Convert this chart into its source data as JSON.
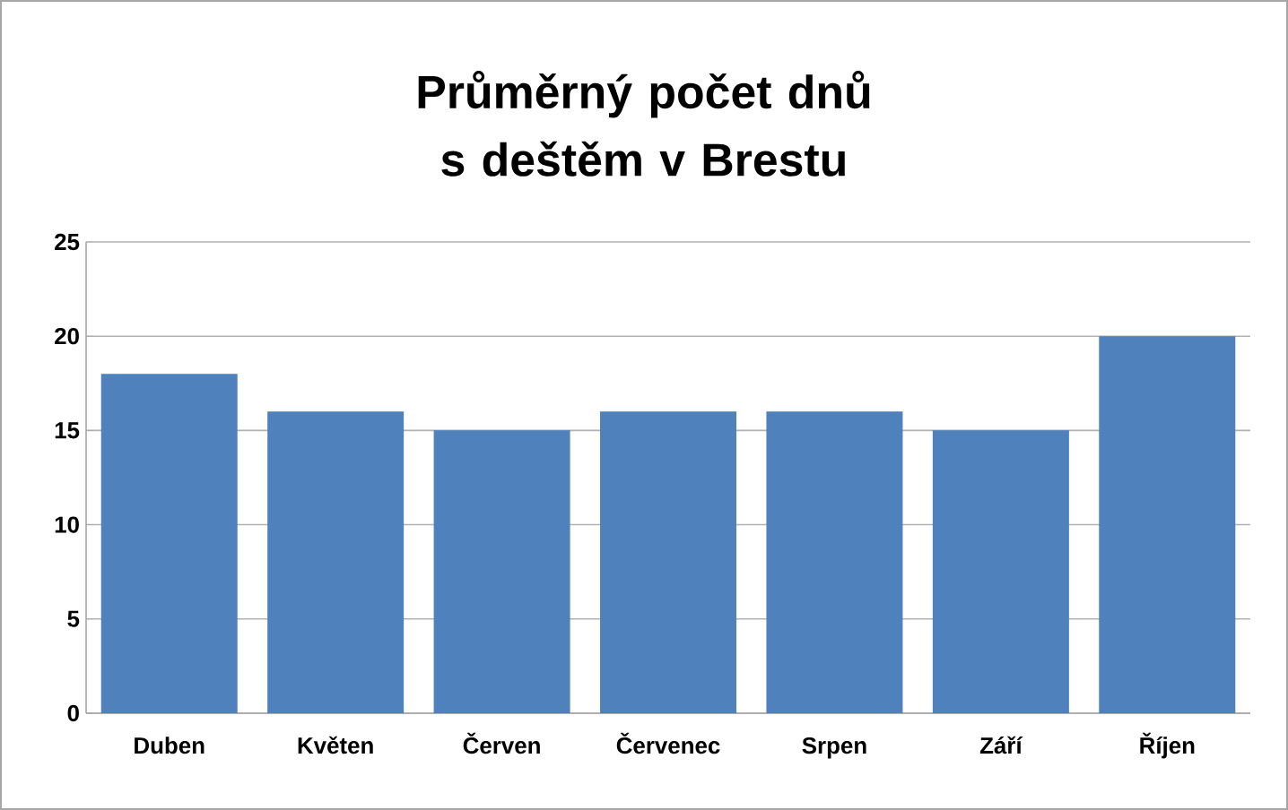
{
  "chart_data": {
    "type": "bar",
    "title": "Průměrný počet dnů s deštěm v Brestu",
    "categories": [
      "Duben",
      "Květen",
      "Červen",
      "Červenec",
      "Srpen",
      "Září",
      "Říjen"
    ],
    "values": [
      18,
      16,
      15,
      16,
      16,
      15,
      20
    ],
    "color": "#4f81bd",
    "ylim": [
      0,
      25
    ],
    "yticks": [
      0,
      5,
      10,
      15,
      20,
      25
    ],
    "grid": "y"
  }
}
